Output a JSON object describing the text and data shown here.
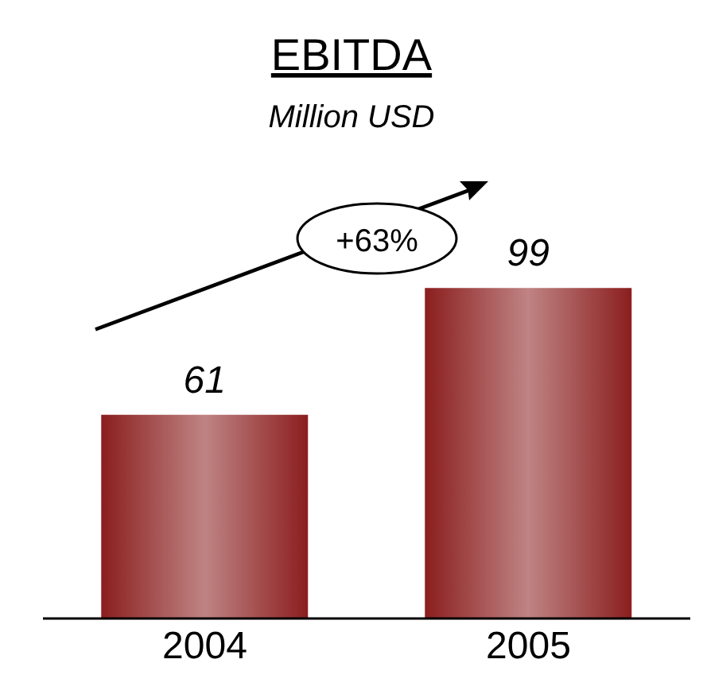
{
  "chart_data": {
    "type": "bar",
    "title": "EBITDA",
    "subtitle": "Million USD",
    "categories": [
      "2004",
      "2005"
    ],
    "values": [
      61,
      99
    ],
    "color": "#8b1e1e",
    "data_labels": true,
    "annotations": [
      "+63%"
    ]
  }
}
